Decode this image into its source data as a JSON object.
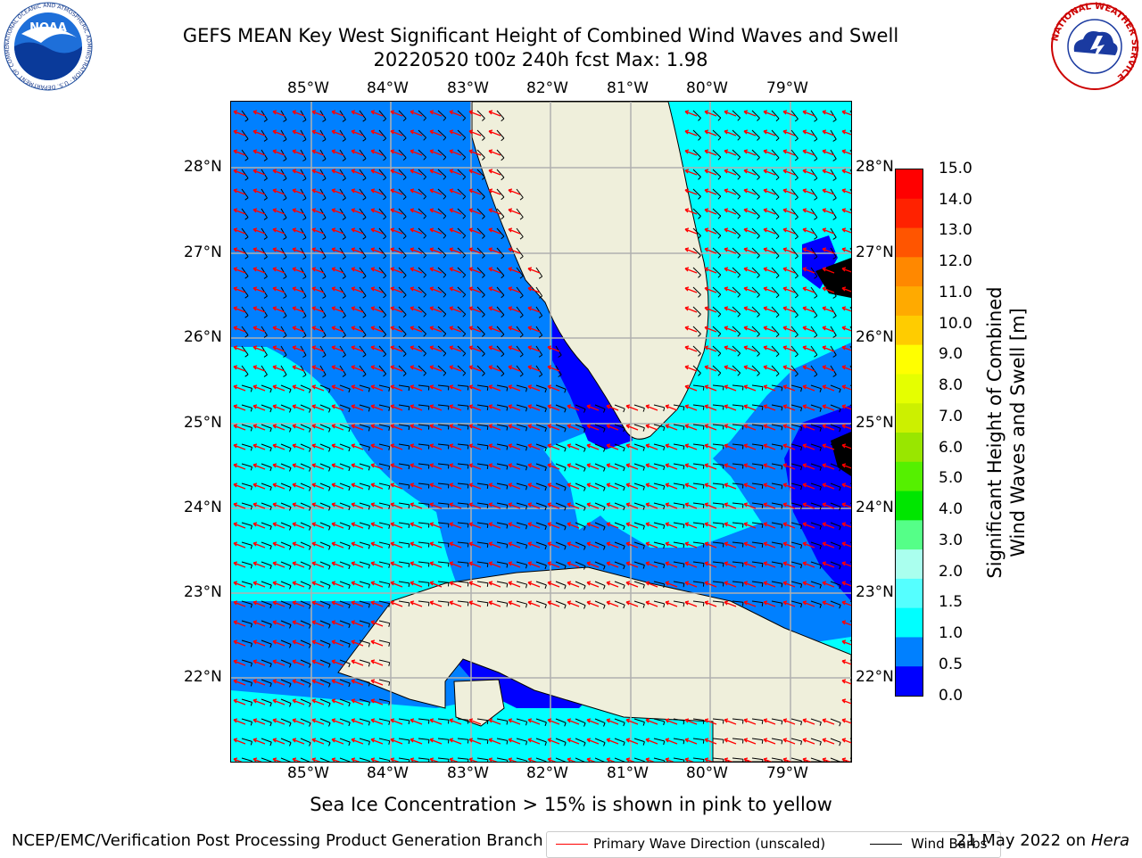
{
  "title": {
    "line1": "GEFS MEAN Key West Significant Height of Combined Wind Waves and Swell",
    "line2": "20220520 t00z 240h fcst   Max: 1.98"
  },
  "logos": {
    "noaa_text": "NOAA",
    "noaa_ring": "NATIONAL OCEANIC AND ATMOSPHERIC ADMINISTRATION · U.S. DEPARTMENT OF COMMERCE",
    "nws_ring": "NATIONAL WEATHER SERVICE"
  },
  "map": {
    "lon_labels": [
      "85°W",
      "84°W",
      "83°W",
      "82°W",
      "81°W",
      "80°W",
      "79°W"
    ],
    "lat_labels": [
      "28°N",
      "27°N",
      "26°N",
      "25°N",
      "24°N",
      "23°N",
      "22°N"
    ],
    "colors": {
      "ocean_dark": "#0000ff",
      "ocean_mid": "#0080ff",
      "ocean_light": "#00ffff",
      "land": "#efefdb",
      "grid": "#b0b0b0",
      "wave_arrow": "#ff0000",
      "wind_barb": "#000000"
    }
  },
  "legend": {
    "wave_label": "Primary Wave Direction (unscaled)",
    "wind_label": "Wind Barbs"
  },
  "colorbar": {
    "label_line1": "Significant Height of Combined",
    "label_line2": "Wind Waves and Swell [m]",
    "ticks": [
      "15.0",
      "14.0",
      "13.0",
      "12.0",
      "11.0",
      "10.0",
      "9.0",
      "8.0",
      "7.0",
      "6.0",
      "5.0",
      "4.0",
      "3.0",
      "2.0",
      "1.5",
      "1.0",
      "0.5",
      "0.0"
    ],
    "colors_top_to_bottom": [
      "#ff0000",
      "#ff2200",
      "#ff5500",
      "#ff8800",
      "#ffaa00",
      "#ffcc00",
      "#ffff00",
      "#e5ff00",
      "#ccf000",
      "#99e600",
      "#55f000",
      "#00e600",
      "#55ff88",
      "#aaffee",
      "#55ffff",
      "#00ffff",
      "#0080ff",
      "#0000ff"
    ]
  },
  "subtitle": "Sea Ice Concentration > 15% is shown in pink to yellow",
  "footer": {
    "left": "NCEP/EMC/Verification Post Processing Product Generation Branch",
    "right_date": "21 May 2022 on",
    "right_host": "Hera"
  }
}
